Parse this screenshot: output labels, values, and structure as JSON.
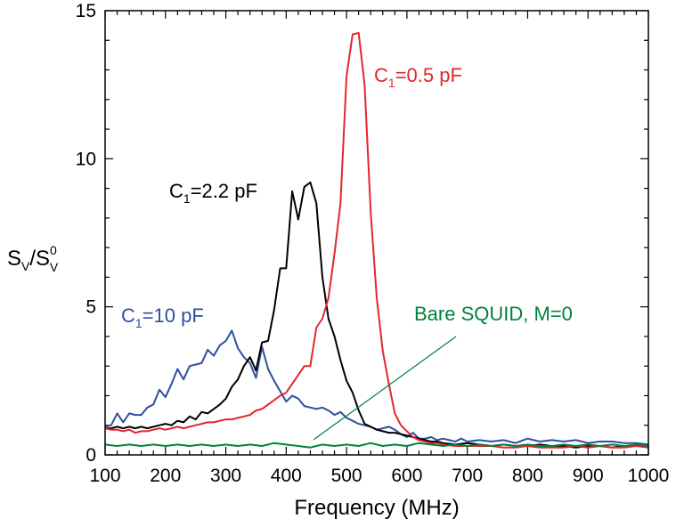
{
  "chart_data": {
    "type": "line",
    "title": "",
    "xlabel": "Frequency (MHz)",
    "ylabel": {
      "base": "S",
      "sub1": "V",
      "slash": "/S",
      "sup": "0",
      "sub2": "V"
    },
    "xlim": [
      100,
      1000
    ],
    "ylim": [
      0,
      15
    ],
    "xticks": [
      100,
      200,
      300,
      400,
      500,
      600,
      700,
      800,
      900,
      1000
    ],
    "yticks": [
      0,
      5,
      10,
      15
    ],
    "grid": false,
    "colors": {
      "c10": "#2e4fa0",
      "c22": "#000000",
      "c05": "#e3262b",
      "bare": "#00823b"
    },
    "series": [
      {
        "key": "c10",
        "label": {
          "main": "C",
          "sub": "1",
          "rest": "=10 pF"
        },
        "x": [
          100,
          110,
          120,
          130,
          140,
          150,
          160,
          170,
          180,
          190,
          200,
          210,
          220,
          230,
          240,
          250,
          260,
          270,
          280,
          290,
          300,
          310,
          320,
          330,
          340,
          350,
          360,
          370,
          380,
          390,
          400,
          410,
          420,
          430,
          440,
          450,
          460,
          470,
          480,
          490,
          500,
          510,
          520,
          530,
          540,
          550,
          560,
          570,
          580,
          590,
          600,
          610,
          620,
          630,
          640,
          650,
          660,
          670,
          680,
          690,
          700,
          720,
          740,
          760,
          780,
          800,
          820,
          840,
          860,
          880,
          900,
          920,
          940,
          960,
          980,
          1000
        ],
        "y": [
          0.95,
          1.0,
          1.4,
          1.1,
          1.4,
          1.35,
          1.35,
          1.6,
          1.7,
          2.2,
          1.95,
          2.4,
          2.9,
          2.55,
          3.0,
          3.05,
          3.1,
          3.55,
          3.35,
          3.7,
          3.85,
          4.2,
          3.6,
          3.3,
          3.1,
          2.6,
          3.65,
          2.9,
          2.5,
          2.15,
          1.8,
          2.0,
          1.9,
          1.65,
          1.6,
          1.55,
          1.6,
          1.5,
          1.35,
          1.45,
          1.25,
          1.15,
          1.05,
          1.0,
          0.95,
          0.85,
          0.9,
          0.95,
          0.85,
          0.7,
          0.6,
          0.75,
          0.55,
          0.55,
          0.6,
          0.5,
          0.55,
          0.5,
          0.45,
          0.55,
          0.45,
          0.5,
          0.45,
          0.5,
          0.4,
          0.55,
          0.45,
          0.5,
          0.45,
          0.5,
          0.4,
          0.45,
          0.45,
          0.4,
          0.4,
          0.35
        ]
      },
      {
        "key": "c22",
        "label": {
          "main": "C",
          "sub": "1",
          "rest": "=2.2 pF"
        },
        "x": [
          100,
          110,
          120,
          130,
          140,
          150,
          160,
          170,
          180,
          190,
          200,
          210,
          220,
          230,
          240,
          250,
          260,
          270,
          280,
          290,
          300,
          310,
          320,
          330,
          340,
          350,
          360,
          370,
          380,
          390,
          400,
          410,
          420,
          430,
          440,
          450,
          460,
          470,
          480,
          490,
          500,
          510,
          520,
          530,
          540,
          550,
          560,
          570,
          580,
          590,
          600,
          610,
          620,
          630,
          640,
          650,
          660,
          680,
          700,
          720,
          740,
          760,
          780,
          800,
          820,
          840,
          860,
          880,
          900,
          920,
          940,
          960,
          980,
          1000
        ],
        "y": [
          0.9,
          0.9,
          0.95,
          0.9,
          0.95,
          0.9,
          0.95,
          0.9,
          0.95,
          1.0,
          1.05,
          1.0,
          1.15,
          1.1,
          1.3,
          1.2,
          1.45,
          1.4,
          1.55,
          1.7,
          1.9,
          2.3,
          2.55,
          3.0,
          3.3,
          2.85,
          3.8,
          3.85,
          4.9,
          6.3,
          6.3,
          8.9,
          7.95,
          9.05,
          9.2,
          8.5,
          6.0,
          4.6,
          4.0,
          3.2,
          2.5,
          2.1,
          1.5,
          1.05,
          0.95,
          0.85,
          0.8,
          0.75,
          0.75,
          0.7,
          0.65,
          0.6,
          0.55,
          0.5,
          0.45,
          0.45,
          0.4,
          0.35,
          0.4,
          0.35,
          0.3,
          0.35,
          0.3,
          0.3,
          0.35,
          0.3,
          0.3,
          0.25,
          0.3,
          0.3,
          0.25,
          0.3,
          0.3,
          0.3
        ]
      },
      {
        "key": "c05",
        "label": {
          "main": "C",
          "sub": "1",
          "rest": "=0.5 pF"
        },
        "x": [
          100,
          110,
          120,
          130,
          140,
          150,
          160,
          170,
          180,
          190,
          200,
          210,
          220,
          230,
          240,
          250,
          260,
          270,
          280,
          290,
          300,
          310,
          320,
          330,
          340,
          350,
          360,
          370,
          380,
          390,
          400,
          410,
          420,
          430,
          440,
          450,
          460,
          470,
          480,
          490,
          500,
          510,
          520,
          530,
          540,
          550,
          560,
          570,
          580,
          590,
          600,
          610,
          620,
          630,
          640,
          650,
          660,
          680,
          700,
          720,
          740,
          760,
          780,
          800,
          820,
          840,
          860,
          880,
          900,
          920,
          940,
          960,
          980,
          1000
        ],
        "y": [
          0.9,
          0.85,
          0.85,
          0.8,
          0.85,
          0.75,
          0.8,
          0.8,
          0.85,
          0.9,
          0.85,
          0.9,
          0.95,
          0.9,
          0.95,
          1.0,
          1.05,
          1.1,
          1.1,
          1.15,
          1.2,
          1.2,
          1.25,
          1.3,
          1.35,
          1.5,
          1.55,
          1.7,
          1.85,
          2.0,
          2.1,
          2.4,
          2.7,
          3.0,
          3.0,
          4.3,
          4.6,
          5.3,
          6.8,
          8.5,
          12.8,
          14.2,
          14.25,
          12.5,
          8.2,
          5.3,
          3.5,
          2.4,
          1.4,
          1.0,
          0.8,
          0.6,
          0.5,
          0.45,
          0.4,
          0.4,
          0.35,
          0.3,
          0.3,
          0.3,
          0.3,
          0.25,
          0.25,
          0.3,
          0.25,
          0.25,
          0.25,
          0.3,
          0.25,
          0.3,
          0.25,
          0.25,
          0.3,
          0.25
        ]
      },
      {
        "key": "bare",
        "label": {
          "main": "Bare SQUID, M=0",
          "sub": "",
          "rest": ""
        },
        "x": [
          100,
          120,
          140,
          160,
          180,
          200,
          220,
          240,
          260,
          280,
          300,
          320,
          340,
          360,
          380,
          400,
          420,
          440,
          460,
          480,
          500,
          520,
          540,
          560,
          580,
          600,
          620,
          640,
          660,
          680,
          700,
          720,
          740,
          760,
          780,
          800,
          820,
          840,
          860,
          880,
          900,
          920,
          940,
          960,
          980,
          1000
        ],
        "y": [
          0.35,
          0.3,
          0.35,
          0.3,
          0.35,
          0.3,
          0.35,
          0.3,
          0.35,
          0.3,
          0.35,
          0.3,
          0.35,
          0.3,
          0.4,
          0.35,
          0.3,
          0.25,
          0.35,
          0.3,
          0.35,
          0.3,
          0.4,
          0.3,
          0.35,
          0.3,
          0.4,
          0.35,
          0.3,
          0.35,
          0.3,
          0.35,
          0.3,
          0.35,
          0.3,
          0.35,
          0.3,
          0.3,
          0.35,
          0.3,
          0.35,
          0.3,
          0.35,
          0.3,
          0.35,
          0.3
        ]
      }
    ]
  }
}
